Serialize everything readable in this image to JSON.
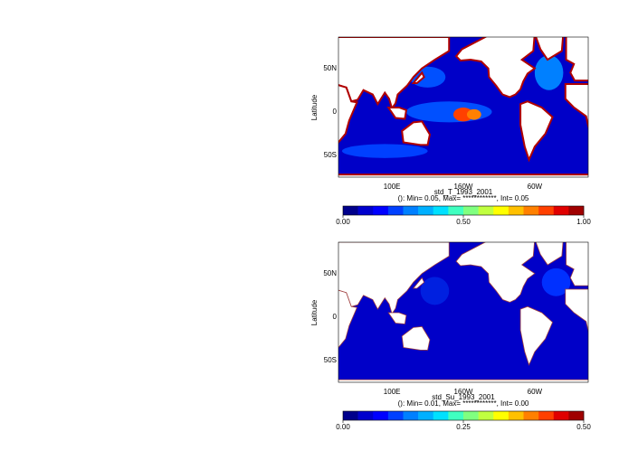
{
  "panels": [
    {
      "title": "std_T_1993_2001",
      "subtitle": "(): Min= 0.05, Max= ************, Int= 0.05",
      "y_label": "Latitude",
      "lat_ticks": [
        "50N",
        "0",
        "50S"
      ],
      "lon_ticks": [
        "100E",
        "160W",
        "60W"
      ],
      "colorbar": {
        "lim": [
          0,
          1.0
        ],
        "ticks": [
          {
            "value": 0,
            "label": "0.00"
          },
          {
            "value": 0.5,
            "label": "0.50"
          },
          {
            "value": 1.0,
            "label": "1.00"
          }
        ],
        "colors": [
          "#00008b",
          "#0000cd",
          "#0000ff",
          "#0040ff",
          "#0080ff",
          "#00b0ff",
          "#00e0ff",
          "#40ffc0",
          "#80ff80",
          "#c0ff40",
          "#ffff00",
          "#ffc000",
          "#ff8000",
          "#ff4000",
          "#e00000",
          "#a00000"
        ]
      }
    },
    {
      "title": "std_Su_1993_2001",
      "subtitle": "(): Min= 0.01, Max= ************, Int= 0.00",
      "y_label": "Latitude",
      "lat_ticks": [
        "50N",
        "0",
        "50S"
      ],
      "lon_ticks": [
        "100E",
        "160W",
        "60W"
      ],
      "colorbar": {
        "lim": [
          0,
          0.5
        ],
        "ticks": [
          {
            "value": 0,
            "label": "0.00"
          },
          {
            "value": 0.25,
            "label": "0.25"
          },
          {
            "value": 0.5,
            "label": "0.50"
          }
        ],
        "colors": [
          "#00008b",
          "#0000cd",
          "#0000ff",
          "#0040ff",
          "#0080ff",
          "#00b0ff",
          "#00e0ff",
          "#40ffc0",
          "#80ff80",
          "#c0ff40",
          "#ffff00",
          "#ffc000",
          "#ff8000",
          "#ff4000",
          "#e00000",
          "#a00000"
        ]
      }
    }
  ]
}
